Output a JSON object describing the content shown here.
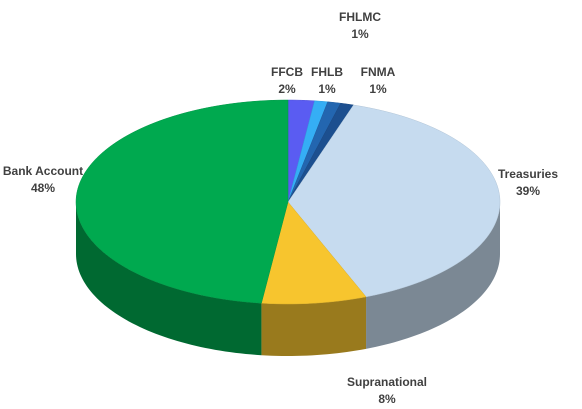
{
  "chart_data": {
    "type": "pie",
    "categories": [
      "FFCB",
      "FHLB",
      "FHLMC",
      "FNMA",
      "Treasuries",
      "Supranational",
      "Bank Account"
    ],
    "values": [
      2,
      1,
      1,
      1,
      39,
      8,
      48
    ],
    "value_labels": [
      "2%",
      "1%",
      "1%",
      "1%",
      "39%",
      "8%",
      "48%"
    ],
    "colors": [
      "#5a5cf2",
      "#35aef5",
      "#2366b0",
      "#1c4f8f",
      "#c6dbef",
      "#f7c52e",
      "#00a94f"
    ]
  }
}
